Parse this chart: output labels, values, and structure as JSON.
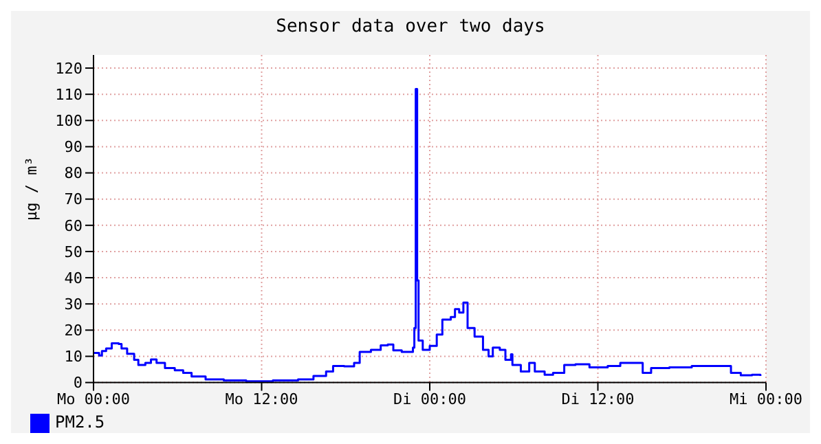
{
  "chart_data": {
    "type": "step",
    "title": "Sensor data over two days",
    "ylabel": "µg / m³",
    "xlim": [
      "--01-01T00:00",
      "--01-03T00:00"
    ],
    "xticks": [
      {
        "value": "--01-01T00:00",
        "label": "Mo 00:00"
      },
      {
        "value": "--01-01T12:00",
        "label": "Mo 12:00"
      },
      {
        "value": "--01-02T00:00",
        "label": "Di 00:00"
      },
      {
        "value": "--01-02T12:00",
        "label": "Di 12:00"
      },
      {
        "value": "--01-03T00:00",
        "label": "Mi 00:00"
      }
    ],
    "ylim": [
      0,
      125
    ],
    "yticks": [
      0,
      10,
      20,
      30,
      40,
      50,
      60,
      70,
      80,
      90,
      100,
      110,
      120
    ],
    "grid": true,
    "legend": "bottom",
    "line_style": "solid",
    "marker": "none",
    "series": [
      {
        "name": "PM2.5",
        "color": "#0000ff",
        "x": [
          "--01-01T00:00",
          "--01-01T00:24",
          "--01-01T00:36",
          "--01-01T00:54",
          "--01-01T01:18",
          "--01-01T01:48",
          "--01-01T02:00",
          "--01-01T02:24",
          "--01-01T02:54",
          "--01-01T03:12",
          "--01-01T03:42",
          "--01-01T04:06",
          "--01-01T04:30",
          "--01-01T05:06",
          "--01-01T05:48",
          "--01-01T06:24",
          "--01-01T07:00",
          "--01-01T08:00",
          "--01-01T09:18",
          "--01-01T10:54",
          "--01-01T12:48",
          "--01-01T14:36",
          "--01-01T15:42",
          "--01-01T16:36",
          "--01-01T17:06",
          "--01-01T17:54",
          "--01-01T18:36",
          "--01-01T19:00",
          "--01-01T19:48",
          "--01-01T20:30",
          "--01-01T21:00",
          "--01-01T21:24",
          "--01-01T22:00",
          "--01-01T22:48",
          "--01-01T22:54",
          "--01-01T23:00",
          "--01-01T23:06",
          "--01-01T23:12",
          "--01-01T23:30",
          "--01-02T00:00",
          "--01-02T00:30",
          "--01-02T00:54",
          "--01-02T01:30",
          "--01-02T01:48",
          "--01-02T02:06",
          "--01-02T02:24",
          "--01-02T02:42",
          "--01-02T03:12",
          "--01-02T03:48",
          "--01-02T04:12",
          "--01-02T04:30",
          "--01-02T05:00",
          "--01-02T05:24",
          "--01-02T05:48",
          "--01-02T05:54",
          "--01-02T06:30",
          "--01-02T07:06",
          "--01-02T07:30",
          "--01-02T08:12",
          "--01-02T08:48",
          "--01-02T09:36",
          "--01-02T10:24",
          "--01-02T11:24",
          "--01-02T12:42",
          "--01-02T13:36",
          "--01-02T15:12",
          "--01-02T15:48",
          "--01-02T17:06",
          "--01-02T18:42",
          "--01-02T20:42",
          "--01-02T21:30",
          "--01-02T22:12",
          "--01-02T23:00",
          "--01-02T23:36"
        ],
        "values": [
          11.3,
          10.3,
          12,
          13,
          15,
          14.7,
          13,
          11,
          8.7,
          6.7,
          7.5,
          8.8,
          7.5,
          5.5,
          4.7,
          3.7,
          2.3,
          1.2,
          0.8,
          0.5,
          0.8,
          1.2,
          2.5,
          4.2,
          6.3,
          6.2,
          7.5,
          11.7,
          12.5,
          14.2,
          14.5,
          12.3,
          11.7,
          13.3,
          20.8,
          112,
          39,
          16,
          12.5,
          14,
          18.3,
          24,
          25,
          28,
          26.7,
          30.5,
          20.8,
          17.5,
          12.5,
          10,
          13.3,
          12.5,
          8.7,
          10.8,
          6.7,
          4.2,
          7.5,
          4.2,
          3,
          3.7,
          6.7,
          7,
          5.8,
          6.3,
          7.5,
          3.7,
          5.5,
          5.8,
          6.3,
          6.3,
          3.7,
          2.8,
          3,
          2.5
        ]
      }
    ]
  }
}
